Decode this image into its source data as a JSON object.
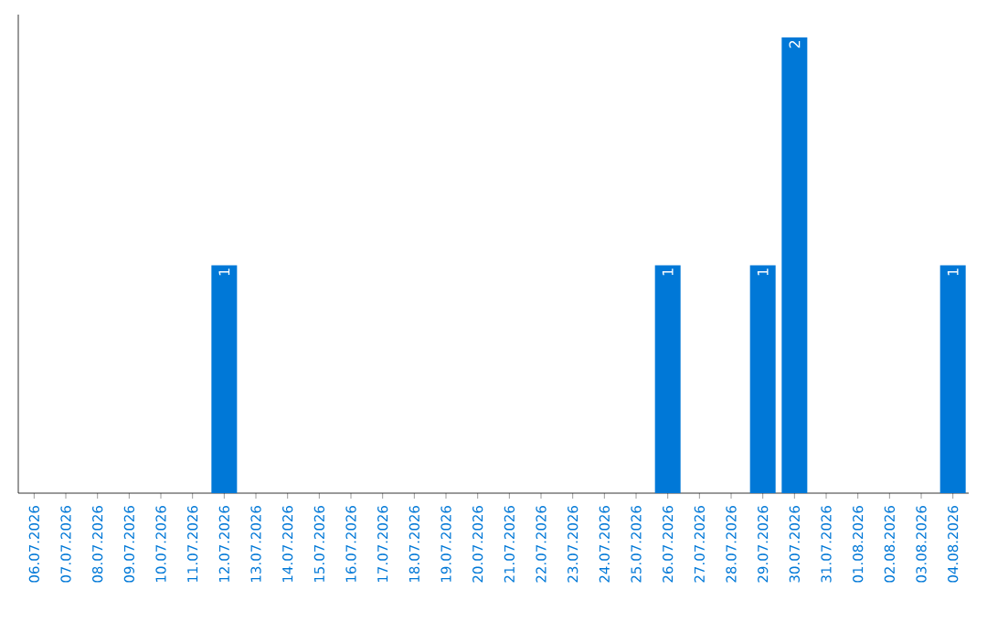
{
  "chart_data": {
    "type": "bar",
    "categories": [
      "06.07.2026",
      "07.07.2026",
      "08.07.2026",
      "09.07.2026",
      "10.07.2026",
      "11.07.2026",
      "12.07.2026",
      "13.07.2026",
      "14.07.2026",
      "15.07.2026",
      "16.07.2026",
      "17.07.2026",
      "18.07.2026",
      "19.07.2026",
      "20.07.2026",
      "21.07.2026",
      "22.07.2026",
      "23.07.2026",
      "24.07.2026",
      "25.07.2026",
      "26.07.2026",
      "27.07.2026",
      "28.07.2026",
      "29.07.2026",
      "30.07.2026",
      "31.07.2026",
      "01.08.2026",
      "02.08.2026",
      "03.08.2026",
      "04.08.2026"
    ],
    "values": [
      0,
      0,
      0,
      0,
      0,
      0,
      1,
      0,
      0,
      0,
      0,
      0,
      0,
      0,
      0,
      0,
      0,
      0,
      0,
      0,
      1,
      0,
      0,
      1,
      2,
      0,
      0,
      0,
      0,
      1
    ],
    "value_labels": [
      null,
      null,
      null,
      null,
      null,
      null,
      "1",
      null,
      null,
      null,
      null,
      null,
      null,
      null,
      null,
      null,
      null,
      null,
      null,
      null,
      "1",
      null,
      null,
      "1",
      "2",
      null,
      null,
      null,
      null,
      "1"
    ],
    "color": "#0078d7"
  }
}
